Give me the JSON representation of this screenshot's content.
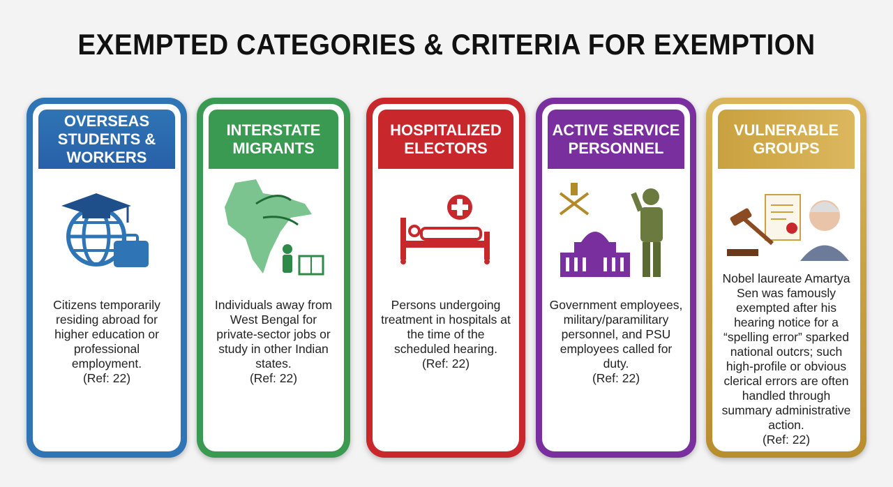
{
  "title": "EXEMPTED CATEGORIES & CRITERIA FOR EXEMPTION",
  "cards": [
    {
      "heading": "OVERSEAS STUDENTS & WORKERS",
      "color": "#2f74b5",
      "icon": "globe-graduation-cap-briefcase-icon",
      "text": "Citizens temporarily residing abroad for higher education or professional employment.",
      "ref": "(Ref: 22)"
    },
    {
      "heading": "INTERSTATE MIGRANTS",
      "color": "#3a9a52",
      "icon": "india-map-migration-icon",
      "text": "Individuals away from West Bengal for private-sector jobs or study in other Indian states.",
      "ref": "(Ref: 22)"
    },
    {
      "heading": "HOSPITALIZED ELECTORS",
      "color": "#c8282c",
      "icon": "hospital-bed-icon",
      "text": "Persons undergoing treatment in hospitals at the time of the scheduled hearing.",
      "ref": "(Ref: 22)"
    },
    {
      "heading": "ACTIVE SERVICE PERSONNEL",
      "color": "#7a2f9e",
      "icon": "soldier-government-building-icon",
      "text": "Government employees, military/paramilitary personnel, and PSU employees called for duty.",
      "ref": "(Ref: 22)"
    },
    {
      "heading": "VULNERABLE GROUPS",
      "color": "#c9a13f",
      "icon": "gavel-document-portrait-icon",
      "text": "Nobel laureate Amartya Sen was famously exempted after his hearing notice for a “spelling error” sparked national outcrs; such high-profile or obvious clerical errors are often handled through summary administrative action.",
      "ref": "(Ref: 22)"
    }
  ]
}
